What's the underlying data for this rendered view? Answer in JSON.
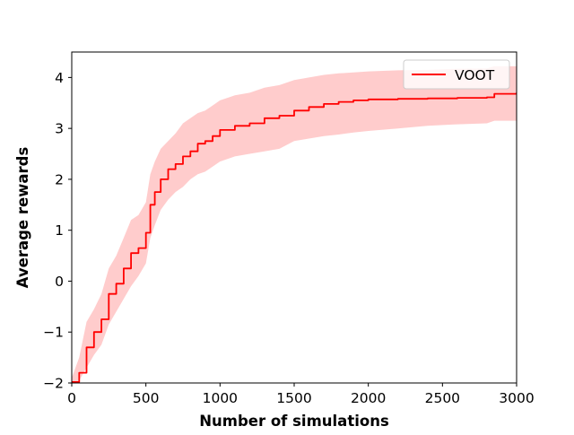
{
  "chart_data": {
    "type": "line",
    "xlabel": "Number of simulations",
    "ylabel": "Average rewards",
    "xlim": [
      0,
      3000
    ],
    "ylim": [
      -2,
      4.5
    ],
    "xticks": [
      0,
      500,
      1000,
      1500,
      2000,
      2500,
      3000
    ],
    "yticks": [
      -2,
      -1,
      0,
      1,
      2,
      3,
      4
    ],
    "xtick_labels": [
      "0",
      "500",
      "1000",
      "1500",
      "2000",
      "2500",
      "3000"
    ],
    "ytick_labels": [
      "−2",
      "−1",
      "0",
      "1",
      "2",
      "3",
      "4"
    ],
    "grid": false,
    "legend": {
      "placement": "top-right"
    },
    "series": [
      {
        "name": "VOOT",
        "color": "#ff0000",
        "band_color": "#ffcccc",
        "x": [
          0,
          50,
          100,
          150,
          200,
          250,
          300,
          350,
          400,
          450,
          500,
          530,
          560,
          600,
          650,
          700,
          750,
          800,
          850,
          900,
          950,
          1000,
          1100,
          1200,
          1300,
          1400,
          1500,
          1600,
          1700,
          1800,
          1900,
          2000,
          2200,
          2400,
          2600,
          2800,
          2850,
          3000
        ],
        "y": [
          -1.98,
          -1.8,
          -1.3,
          -1.0,
          -0.75,
          -0.25,
          -0.05,
          0.25,
          0.55,
          0.65,
          0.95,
          1.5,
          1.75,
          2.0,
          2.2,
          2.3,
          2.45,
          2.55,
          2.7,
          2.75,
          2.85,
          2.97,
          3.05,
          3.1,
          3.2,
          3.25,
          3.35,
          3.42,
          3.48,
          3.52,
          3.55,
          3.57,
          3.58,
          3.59,
          3.6,
          3.61,
          3.68,
          3.7
        ],
        "lower": [
          -2.0,
          -1.95,
          -1.7,
          -1.45,
          -1.25,
          -0.85,
          -0.6,
          -0.35,
          -0.1,
          0.1,
          0.35,
          0.85,
          1.1,
          1.4,
          1.6,
          1.75,
          1.85,
          2.0,
          2.1,
          2.15,
          2.25,
          2.35,
          2.45,
          2.5,
          2.55,
          2.6,
          2.75,
          2.8,
          2.85,
          2.88,
          2.92,
          2.95,
          3.0,
          3.05,
          3.08,
          3.1,
          3.15,
          3.15
        ],
        "upper": [
          -1.9,
          -1.5,
          -0.8,
          -0.55,
          -0.25,
          0.25,
          0.5,
          0.85,
          1.2,
          1.3,
          1.55,
          2.1,
          2.35,
          2.6,
          2.75,
          2.9,
          3.1,
          3.2,
          3.3,
          3.35,
          3.45,
          3.55,
          3.65,
          3.7,
          3.8,
          3.85,
          3.95,
          4.0,
          4.05,
          4.08,
          4.1,
          4.12,
          4.14,
          4.15,
          4.17,
          4.18,
          4.22,
          4.22
        ]
      }
    ]
  }
}
